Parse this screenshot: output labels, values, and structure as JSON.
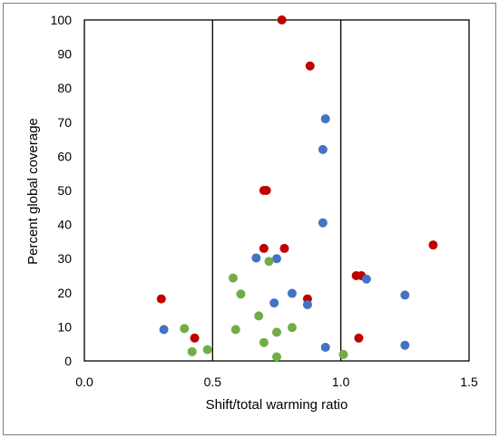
{
  "chart_data": {
    "type": "scatter",
    "xlabel": "Shift/total warming ratio",
    "ylabel": "Percent global coverage",
    "xlim": [
      0,
      1.5
    ],
    "ylim": [
      0,
      100
    ],
    "x_ticks": [
      "0.0",
      "0.5",
      "1.0",
      "1.5"
    ],
    "y_ticks": [
      "0",
      "10",
      "20",
      "30",
      "40",
      "50",
      "60",
      "70",
      "80",
      "90",
      "100"
    ],
    "vertical_reference_lines": [
      0.5,
      1.0
    ],
    "grid": false,
    "legend": "none",
    "series": [
      {
        "color": "#c00000",
        "points": [
          [
            0.77,
            100
          ],
          [
            0.88,
            86.5
          ],
          [
            0.7,
            50
          ],
          [
            0.71,
            50
          ],
          [
            0.7,
            33
          ],
          [
            0.78,
            33
          ],
          [
            0.3,
            18.2
          ],
          [
            0.43,
            6.7
          ],
          [
            0.87,
            18.2
          ],
          [
            1.06,
            25
          ],
          [
            1.08,
            25
          ],
          [
            1.07,
            6.7
          ],
          [
            1.36,
            34
          ]
        ]
      },
      {
        "color": "#4472c4",
        "points": [
          [
            0.94,
            71
          ],
          [
            0.93,
            62
          ],
          [
            0.93,
            40.5
          ],
          [
            0.67,
            30.2
          ],
          [
            0.75,
            30
          ],
          [
            0.81,
            19.8
          ],
          [
            0.74,
            17
          ],
          [
            0.87,
            16.5
          ],
          [
            0.31,
            9.2
          ],
          [
            0.94,
            4
          ],
          [
            1.1,
            24
          ],
          [
            1.25,
            19.3
          ],
          [
            1.25,
            4.6
          ]
        ]
      },
      {
        "color": "#70ad47",
        "points": [
          [
            0.58,
            24.3
          ],
          [
            0.61,
            19.6
          ],
          [
            0.72,
            29.2
          ],
          [
            0.68,
            13.2
          ],
          [
            0.59,
            9.2
          ],
          [
            0.81,
            9.8
          ],
          [
            0.75,
            8.4
          ],
          [
            0.7,
            5.4
          ],
          [
            0.39,
            9.5
          ],
          [
            0.42,
            2.7
          ],
          [
            0.48,
            3.3
          ],
          [
            0.75,
            1.2
          ],
          [
            1.01,
            1.9
          ]
        ]
      }
    ]
  }
}
